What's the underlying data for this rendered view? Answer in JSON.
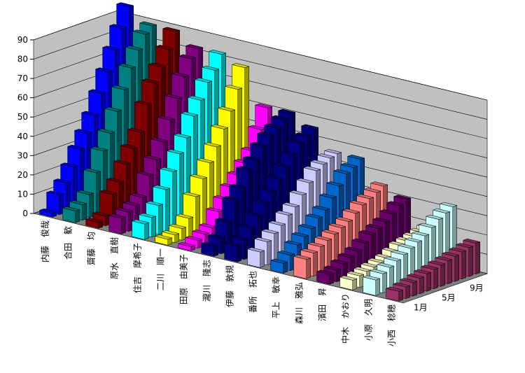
{
  "chart_data": {
    "type": "bar3d",
    "categories": [
      "1月",
      null,
      null,
      null,
      "5月",
      null,
      null,
      null,
      "9月",
      null,
      null,
      null
    ],
    "ylim": [
      0,
      90
    ],
    "yticks": [
      0,
      10,
      20,
      30,
      40,
      50,
      60,
      70,
      80,
      90
    ],
    "grid": true,
    "series": [
      {
        "name": "内藤　俊哉",
        "color": "#0000ff",
        "values": [
          2,
          10,
          15,
          22,
          30,
          37,
          45,
          55,
          65,
          75,
          85,
          95
        ]
      },
      {
        "name": "合田　歓",
        "color": "#008080",
        "values": [
          6,
          8,
          12,
          22,
          32,
          40,
          50,
          60,
          70,
          78,
          85,
          88
        ]
      },
      {
        "name": "齋藤　均",
        "color": "#800000",
        "values": [
          3,
          5,
          15,
          20,
          28,
          35,
          42,
          55,
          65,
          72,
          80,
          88
        ]
      },
      {
        "name": "原水　直樹",
        "color": "#800080",
        "values": [
          8,
          10,
          12,
          15,
          25,
          32,
          40,
          50,
          60,
          70,
          78,
          82
        ]
      },
      {
        "name": "住吉　摩希子",
        "color": "#00ffff",
        "values": [
          8,
          10,
          15,
          22,
          30,
          38,
          45,
          55,
          62,
          70,
          75,
          82
        ]
      },
      {
        "name": "二川　順一",
        "color": "#ffff00",
        "values": [
          3,
          4,
          6,
          10,
          20,
          28,
          35,
          42,
          50,
          58,
          68,
          78
        ]
      },
      {
        "name": "田原　由美子",
        "color": "#ff00ff",
        "values": [
          2,
          4,
          6,
          8,
          15,
          20,
          25,
          30,
          35,
          40,
          50,
          60
        ]
      },
      {
        "name": "瀧川　隆志",
        "color": "#000080",
        "values": [
          5,
          8,
          15,
          25,
          30,
          38,
          42,
          48,
          52,
          55,
          58,
          60
        ]
      },
      {
        "name": "伊藤　敦規",
        "color": "#000080",
        "values": [
          8,
          10,
          15,
          20,
          25,
          30,
          35,
          40,
          45,
          50,
          52,
          55
        ]
      },
      {
        "name": "番所　拓也",
        "color": "#ccccff",
        "values": [
          8,
          12,
          15,
          18,
          22,
          25,
          30,
          35,
          40,
          42,
          44,
          45
        ]
      },
      {
        "name": "平上　敏幸",
        "color": "#0066cc",
        "values": [
          5,
          8,
          12,
          15,
          18,
          22,
          25,
          30,
          35,
          40,
          42,
          45
        ]
      },
      {
        "name": "森川　雅弘",
        "color": "#ff8080",
        "values": [
          10,
          12,
          14,
          16,
          18,
          20,
          22,
          25,
          28,
          30,
          32,
          34
        ]
      },
      {
        "name": "濱田　昇",
        "color": "#660066",
        "values": [
          5,
          6,
          8,
          10,
          12,
          15,
          18,
          20,
          22,
          25,
          28,
          30
        ]
      },
      {
        "name": "中木　かおり",
        "color": "#ffffcc",
        "values": [
          5,
          6,
          7,
          8,
          9,
          10,
          12,
          14,
          15,
          16,
          17,
          18
        ]
      },
      {
        "name": "小原　久明",
        "color": "#ccffff",
        "values": [
          8,
          10,
          12,
          14,
          16,
          18,
          20,
          22,
          25,
          28,
          30,
          32
        ]
      },
      {
        "name": "小西　稔穂",
        "color": "#993366",
        "values": [
          5,
          6,
          7,
          8,
          9,
          10,
          11,
          12,
          13,
          14,
          15,
          16
        ]
      }
    ]
  }
}
